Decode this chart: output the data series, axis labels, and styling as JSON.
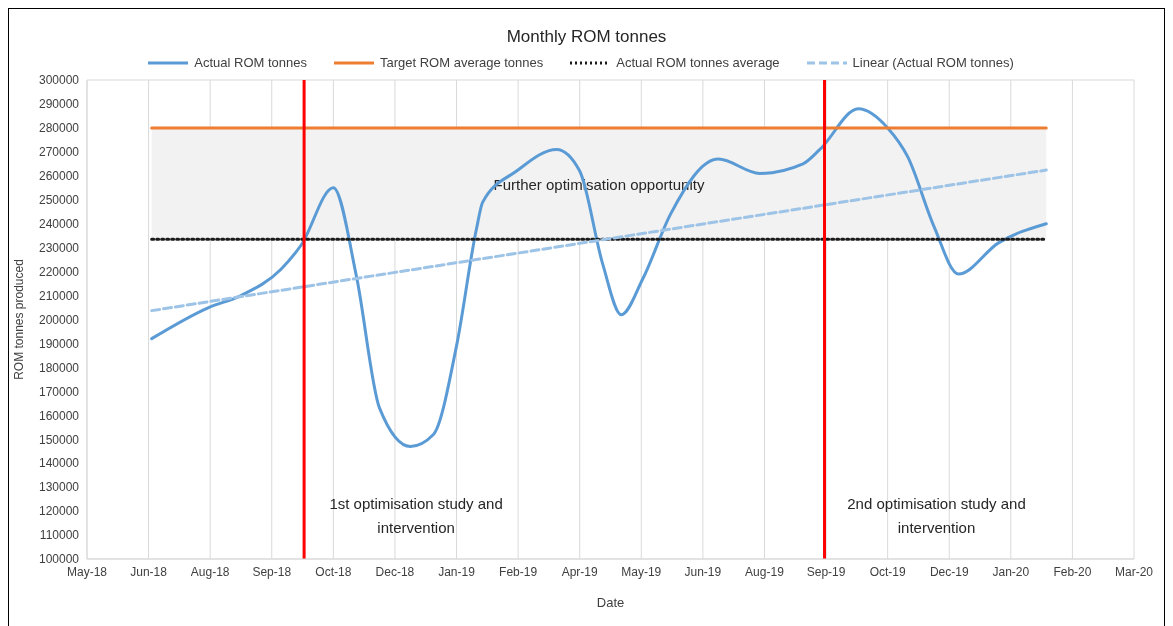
{
  "chart_data": {
    "type": "line",
    "title": "Monthly ROM tonnes",
    "xlabel": "Date",
    "ylabel": "ROM tonnes produced",
    "xlim": [
      "2018-05-21",
      "2020-03-31"
    ],
    "xticks": [
      {
        "value": "2018-05-21",
        "label": "May-18"
      },
      {
        "value": "2018-06-30",
        "label": "Jun-18"
      },
      {
        "value": "2018-08-09",
        "label": "Aug-18"
      },
      {
        "value": "2018-09-18",
        "label": "Sep-18"
      },
      {
        "value": "2018-10-28",
        "label": "Oct-18"
      },
      {
        "value": "2018-12-07",
        "label": "Dec-18"
      },
      {
        "value": "2019-01-16",
        "label": "Jan-19"
      },
      {
        "value": "2019-02-25",
        "label": "Feb-19"
      },
      {
        "value": "2019-04-06",
        "label": "Apr-19"
      },
      {
        "value": "2019-05-16",
        "label": "May-19"
      },
      {
        "value": "2019-06-25",
        "label": "Jun-19"
      },
      {
        "value": "2019-08-04",
        "label": "Aug-19"
      },
      {
        "value": "2019-09-13",
        "label": "Sep-19"
      },
      {
        "value": "2019-10-23",
        "label": "Oct-19"
      },
      {
        "value": "2019-12-02",
        "label": "Dec-19"
      },
      {
        "value": "2020-01-11",
        "label": "Jan-20"
      },
      {
        "value": "2020-02-20",
        "label": "Feb-20"
      },
      {
        "value": "2020-03-31",
        "label": "Mar-20"
      }
    ],
    "ylim": [
      100000,
      300000
    ],
    "yticks": [
      100000,
      110000,
      120000,
      130000,
      140000,
      150000,
      160000,
      170000,
      180000,
      190000,
      200000,
      210000,
      220000,
      230000,
      240000,
      250000,
      260000,
      270000,
      280000,
      290000,
      300000
    ],
    "grid": true,
    "legend": "top",
    "series": [
      {
        "name": "Actual ROM tonnes",
        "color": "#5b9bd5",
        "line_style": "solid",
        "x": [
          "2018-07-02",
          "2018-08-08",
          "2018-08-29",
          "2018-09-24",
          "2018-10-07",
          "2018-10-28",
          "2018-11-12",
          "2018-11-27",
          "2018-12-17",
          "2019-01-01",
          "2019-01-16",
          "2019-01-29",
          "2019-02-02",
          "2019-02-24",
          "2019-03-22",
          "2019-04-06",
          "2019-04-21",
          "2019-05-03",
          "2019-05-17",
          "2019-06-04",
          "2019-07-05",
          "2019-08-01",
          "2019-08-29",
          "2019-09-09",
          "2019-10-04",
          "2019-10-23",
          "2019-11-05",
          "2019-11-22",
          "2019-12-08",
          "2020-01-03",
          "2020-02-03"
        ],
        "values": [
          192000,
          205000,
          210000,
          221000,
          231000,
          255000,
          218000,
          163000,
          147000,
          152000,
          189000,
          238000,
          249000,
          262000,
          271000,
          262000,
          223000,
          202000,
          217000,
          244000,
          267000,
          261000,
          265000,
          271000,
          288000,
          280000,
          268000,
          239000,
          219000,
          232000,
          240000
        ]
      },
      {
        "name": "Target ROM average tonnes",
        "color": "#ed7d31",
        "line_style": "solid",
        "x": [
          "2018-07-02",
          "2020-02-03"
        ],
        "values": [
          280000,
          280000
        ]
      },
      {
        "name": "Actual ROM tonnes average",
        "color": "#1a1a1a",
        "line_style": "dotted",
        "x": [
          "2018-07-02",
          "2020-02-03"
        ],
        "values": [
          233500,
          233500
        ]
      },
      {
        "name": "Linear (Actual ROM tonnes)",
        "color": "#9dc3e6",
        "line_style": "dashed",
        "x": [
          "2018-07-02",
          "2020-02-03"
        ],
        "values": [
          203700,
          262400
        ]
      }
    ],
    "ref_lines": [
      {
        "axis": "x",
        "value": "2018-10-09",
        "label": "1st optimisation study and intervention",
        "color": "#ff0000"
      },
      {
        "axis": "x",
        "value": "2019-09-12",
        "label": "2nd optimisation study and intervention",
        "color": "#ff0000"
      }
    ],
    "bands": [
      {
        "axis": "y",
        "from": 233500,
        "to": 280000,
        "label": "Further optimisation opportunity",
        "color": "#f2f2f2"
      }
    ]
  }
}
